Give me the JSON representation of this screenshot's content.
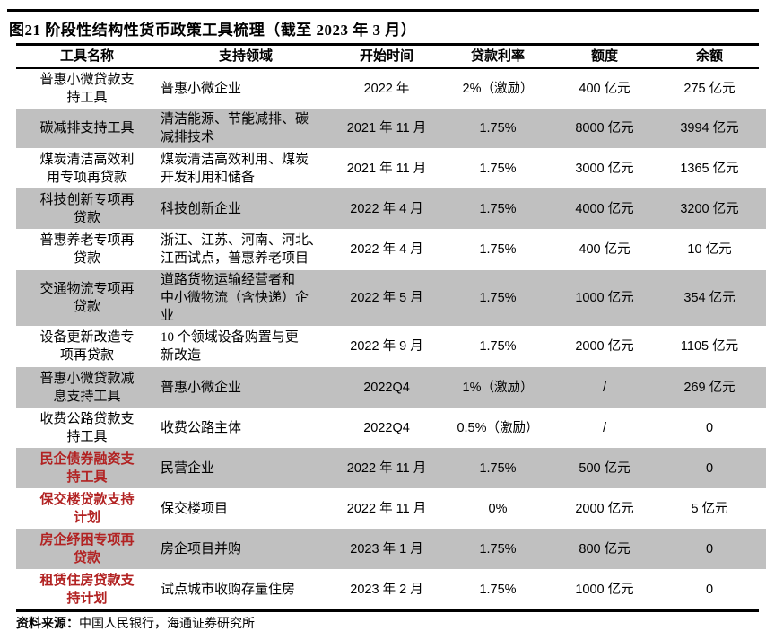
{
  "title": "图21 阶段性结构性货币政策工具梳理（截至 2023 年 3 月）",
  "colors": {
    "row_shade": "#c0c0c0",
    "highlight_red": "#b22222"
  },
  "table": {
    "headers": [
      "工具名称",
      "支持领域",
      "开始时间",
      "贷款利率",
      "额度",
      "余额"
    ],
    "rows": [
      {
        "tool": "普惠小微贷款支\n持工具",
        "field": "普惠小微企业",
        "start": "2022 年",
        "rate": "2%（激励）",
        "quota": "400 亿元",
        "balance": "275 亿元",
        "red": false,
        "shaded": false
      },
      {
        "tool": "碳减排支持工具",
        "field": "清洁能源、节能减排、碳\n减排技术",
        "start": "2021 年 11 月",
        "rate": "1.75%",
        "quota": "8000 亿元",
        "balance": "3994 亿元",
        "red": false,
        "shaded": true
      },
      {
        "tool": "煤炭清洁高效利\n用专项再贷款",
        "field": "煤炭清洁高效利用、煤炭\n开发利用和储备",
        "start": "2021 年 11 月",
        "rate": "1.75%",
        "quota": "3000 亿元",
        "balance": "1365 亿元",
        "red": false,
        "shaded": false
      },
      {
        "tool": "科技创新专项再\n贷款",
        "field": "科技创新企业",
        "start": "2022 年 4 月",
        "rate": "1.75%",
        "quota": "4000 亿元",
        "balance": "3200 亿元",
        "red": false,
        "shaded": true
      },
      {
        "tool": "普惠养老专项再\n贷款",
        "field": "浙江、江苏、河南、河北、\n江西试点，普惠养老项目",
        "start": "2022 年 4 月",
        "rate": "1.75%",
        "quota": "400 亿元",
        "balance": "10 亿元",
        "red": false,
        "shaded": false
      },
      {
        "tool": "交通物流专项再\n贷款",
        "field": "道路货物运输经营者和\n中小微物流（含快递）企\n业",
        "start": "2022 年 5 月",
        "rate": "1.75%",
        "quota": "1000 亿元",
        "balance": "354 亿元",
        "red": false,
        "shaded": true
      },
      {
        "tool": "设备更新改造专\n项再贷款",
        "field": "10 个领域设备购置与更\n新改造",
        "start": "2022 年 9 月",
        "rate": "1.75%",
        "quota": "2000 亿元",
        "balance": "1105 亿元",
        "red": false,
        "shaded": false
      },
      {
        "tool": "普惠小微贷款减\n息支持工具",
        "field": "普惠小微企业",
        "start": "2022Q4",
        "rate": "1%（激励）",
        "quota": "/",
        "balance": "269 亿元",
        "red": false,
        "shaded": true
      },
      {
        "tool": "收费公路贷款支\n持工具",
        "field": "收费公路主体",
        "start": "2022Q4",
        "rate": "0.5%（激励）",
        "quota": "/",
        "balance": "0",
        "red": false,
        "shaded": false
      },
      {
        "tool": "民企债券融资支\n持工具",
        "field": "民营企业",
        "start": "2022 年 11 月",
        "rate": "1.75%",
        "quota": "500 亿元",
        "balance": "0",
        "red": true,
        "shaded": true
      },
      {
        "tool": "保交楼贷款支持\n计划",
        "field": "保交楼项目",
        "start": "2022 年 11 月",
        "rate": "0%",
        "quota": "2000 亿元",
        "balance": "5 亿元",
        "red": true,
        "shaded": false
      },
      {
        "tool": "房企纾困专项再\n贷款",
        "field": "房企项目并购",
        "start": "2023 年 1 月",
        "rate": "1.75%",
        "quota": "800 亿元",
        "balance": "0",
        "red": true,
        "shaded": true
      },
      {
        "tool": "租赁住房贷款支\n持计划",
        "field": "试点城市收购存量住房",
        "start": "2023 年 2 月",
        "rate": "1.75%",
        "quota": "1000 亿元",
        "balance": "0",
        "red": true,
        "shaded": false
      }
    ]
  },
  "footer": {
    "label": "资料来源：",
    "text": "中国人民银行，海通证券研究所"
  }
}
